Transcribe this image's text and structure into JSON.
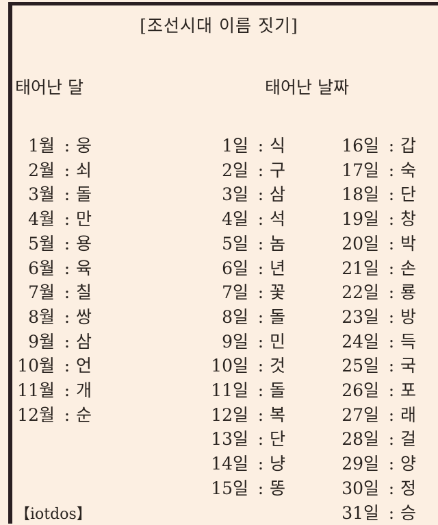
{
  "title": "[조선시대 이름 짓기]",
  "month_header": "태어난 달",
  "day_header": "태어난 날짜",
  "month_unit": "월",
  "day_unit": "일",
  "separator": ":",
  "months": [
    {
      "n": "1",
      "v": "웅"
    },
    {
      "n": "2",
      "v": "쇠"
    },
    {
      "n": "3",
      "v": "돌"
    },
    {
      "n": "4",
      "v": "만"
    },
    {
      "n": "5",
      "v": "용"
    },
    {
      "n": "6",
      "v": "육"
    },
    {
      "n": "7",
      "v": "칠"
    },
    {
      "n": "8",
      "v": "쌍"
    },
    {
      "n": "9",
      "v": "삼"
    },
    {
      "n": "10",
      "v": "언"
    },
    {
      "n": "11",
      "v": "개"
    },
    {
      "n": "12",
      "v": "순"
    }
  ],
  "days": [
    {
      "n": "1",
      "v": "식"
    },
    {
      "n": "2",
      "v": "구"
    },
    {
      "n": "3",
      "v": "삼"
    },
    {
      "n": "4",
      "v": "석"
    },
    {
      "n": "5",
      "v": "놈"
    },
    {
      "n": "6",
      "v": "년"
    },
    {
      "n": "7",
      "v": "꽃"
    },
    {
      "n": "8",
      "v": "돌"
    },
    {
      "n": "9",
      "v": "민"
    },
    {
      "n": "10",
      "v": "것"
    },
    {
      "n": "11",
      "v": "돌"
    },
    {
      "n": "12",
      "v": "복"
    },
    {
      "n": "13",
      "v": "단"
    },
    {
      "n": "14",
      "v": "냥"
    },
    {
      "n": "15",
      "v": "똥"
    },
    {
      "n": "16",
      "v": "갑"
    },
    {
      "n": "17",
      "v": "숙"
    },
    {
      "n": "18",
      "v": "단"
    },
    {
      "n": "19",
      "v": "창"
    },
    {
      "n": "20",
      "v": "박"
    },
    {
      "n": "21",
      "v": "손"
    },
    {
      "n": "22",
      "v": "룡"
    },
    {
      "n": "23",
      "v": "방"
    },
    {
      "n": "24",
      "v": "득"
    },
    {
      "n": "25",
      "v": "국"
    },
    {
      "n": "26",
      "v": "포"
    },
    {
      "n": "27",
      "v": "래"
    },
    {
      "n": "28",
      "v": "걸"
    },
    {
      "n": "29",
      "v": "양"
    },
    {
      "n": "30",
      "v": "정"
    },
    {
      "n": "31",
      "v": "승"
    }
  ],
  "footer": "【iotdos】"
}
